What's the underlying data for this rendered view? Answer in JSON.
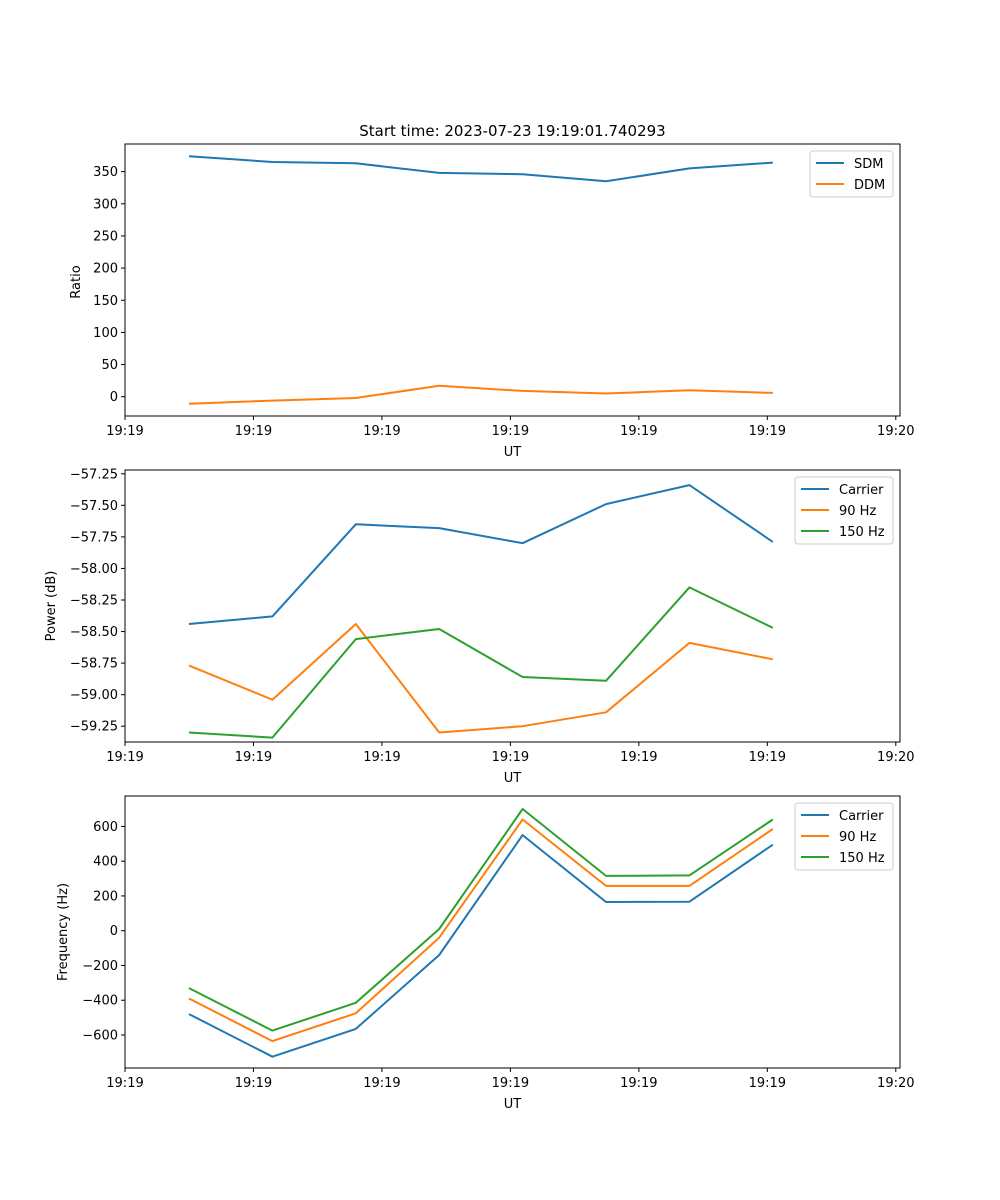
{
  "colors": {
    "blue": "#1f77b4",
    "orange": "#ff7f0e",
    "green": "#2ca02c"
  },
  "chart_data": [
    {
      "type": "line",
      "title": "Start time: 2023-07-23 19:19:01.740293",
      "xlabel": "UT",
      "ylabel": "Ratio",
      "xlim": [
        0,
        9.2
      ],
      "x_ticks": [
        0,
        1.525,
        3.05,
        4.575,
        6.1,
        7.625,
        9.15
      ],
      "x_tick_labels": [
        "19:19",
        "19:19",
        "19:19",
        "19:19",
        "19:19",
        "19:19",
        "19:20"
      ],
      "ylim": [
        -30,
        393
      ],
      "y_ticks": [
        0,
        50,
        100,
        150,
        200,
        250,
        300,
        350
      ],
      "y_tick_labels": [
        "0",
        "50",
        "100",
        "150",
        "200",
        "250",
        "300",
        "350"
      ],
      "x": [
        0.76,
        1.75,
        2.74,
        3.73,
        4.72,
        5.71,
        6.7,
        7.69
      ],
      "series": [
        {
          "name": "SDM",
          "color": "#1f77b4",
          "values": [
            374,
            365,
            363,
            348,
            346,
            335,
            355,
            364
          ]
        },
        {
          "name": "DDM",
          "color": "#ff7f0e",
          "values": [
            -11,
            -6,
            -2,
            17,
            9,
            5,
            10,
            6
          ]
        }
      ],
      "legend": "top-right",
      "grid": false
    },
    {
      "type": "line",
      "title": "",
      "xlabel": "UT",
      "ylabel": "Power (dB)",
      "xlim": [
        0,
        9.2
      ],
      "x_ticks": [
        0,
        1.525,
        3.05,
        4.575,
        6.1,
        7.625,
        9.15
      ],
      "x_tick_labels": [
        "19:19",
        "19:19",
        "19:19",
        "19:19",
        "19:19",
        "19:19",
        "19:20"
      ],
      "ylim": [
        -59.375,
        -57.22
      ],
      "y_ticks": [
        -59.25,
        -59.0,
        -58.75,
        -58.5,
        -58.25,
        -58.0,
        -57.75,
        -57.5,
        -57.25
      ],
      "y_tick_labels": [
        "−59.25",
        "−59.00",
        "−58.75",
        "−58.50",
        "−58.25",
        "−58.00",
        "−57.75",
        "−57.50",
        "−57.25"
      ],
      "x": [
        0.76,
        1.75,
        2.74,
        3.73,
        4.72,
        5.71,
        6.7,
        7.69
      ],
      "series": [
        {
          "name": "Carrier",
          "color": "#1f77b4",
          "values": [
            -58.44,
            -58.38,
            -57.65,
            -57.68,
            -57.8,
            -57.49,
            -57.34,
            -57.79
          ]
        },
        {
          "name": "90 Hz",
          "color": "#ff7f0e",
          "values": [
            -58.77,
            -59.04,
            -58.44,
            -59.3,
            -59.25,
            -59.14,
            -58.59,
            -58.72
          ]
        },
        {
          "name": "150 Hz",
          "color": "#2ca02c",
          "values": [
            -59.3,
            -59.34,
            -58.56,
            -58.48,
            -58.86,
            -58.89,
            -58.15,
            -58.47
          ]
        }
      ],
      "legend": "top-right",
      "grid": false
    },
    {
      "type": "line",
      "title": "",
      "xlabel": "UT",
      "ylabel": "Frequency (Hz)",
      "xlim": [
        0,
        9.2
      ],
      "x_ticks": [
        0,
        1.525,
        3.05,
        4.575,
        6.1,
        7.625,
        9.15
      ],
      "x_tick_labels": [
        "19:19",
        "19:19",
        "19:19",
        "19:19",
        "19:19",
        "19:19",
        "19:20"
      ],
      "ylim": [
        -790,
        775
      ],
      "y_ticks": [
        -600,
        -400,
        -200,
        0,
        200,
        400,
        600
      ],
      "y_tick_labels": [
        "−600",
        "−400",
        "−200",
        "0",
        "200",
        "400",
        "600"
      ],
      "x": [
        0.76,
        1.75,
        2.74,
        3.73,
        4.72,
        5.71,
        6.7,
        7.69
      ],
      "series": [
        {
          "name": "Carrier",
          "color": "#1f77b4",
          "values": [
            -480,
            -725,
            -565,
            -140,
            550,
            165,
            167,
            495
          ]
        },
        {
          "name": "90 Hz",
          "color": "#ff7f0e",
          "values": [
            -390,
            -635,
            -475,
            -40,
            640,
            258,
            258,
            585
          ]
        },
        {
          "name": "150 Hz",
          "color": "#2ca02c",
          "values": [
            -330,
            -575,
            -415,
            10,
            700,
            315,
            318,
            640
          ]
        }
      ],
      "legend": "top-right",
      "grid": false
    }
  ]
}
